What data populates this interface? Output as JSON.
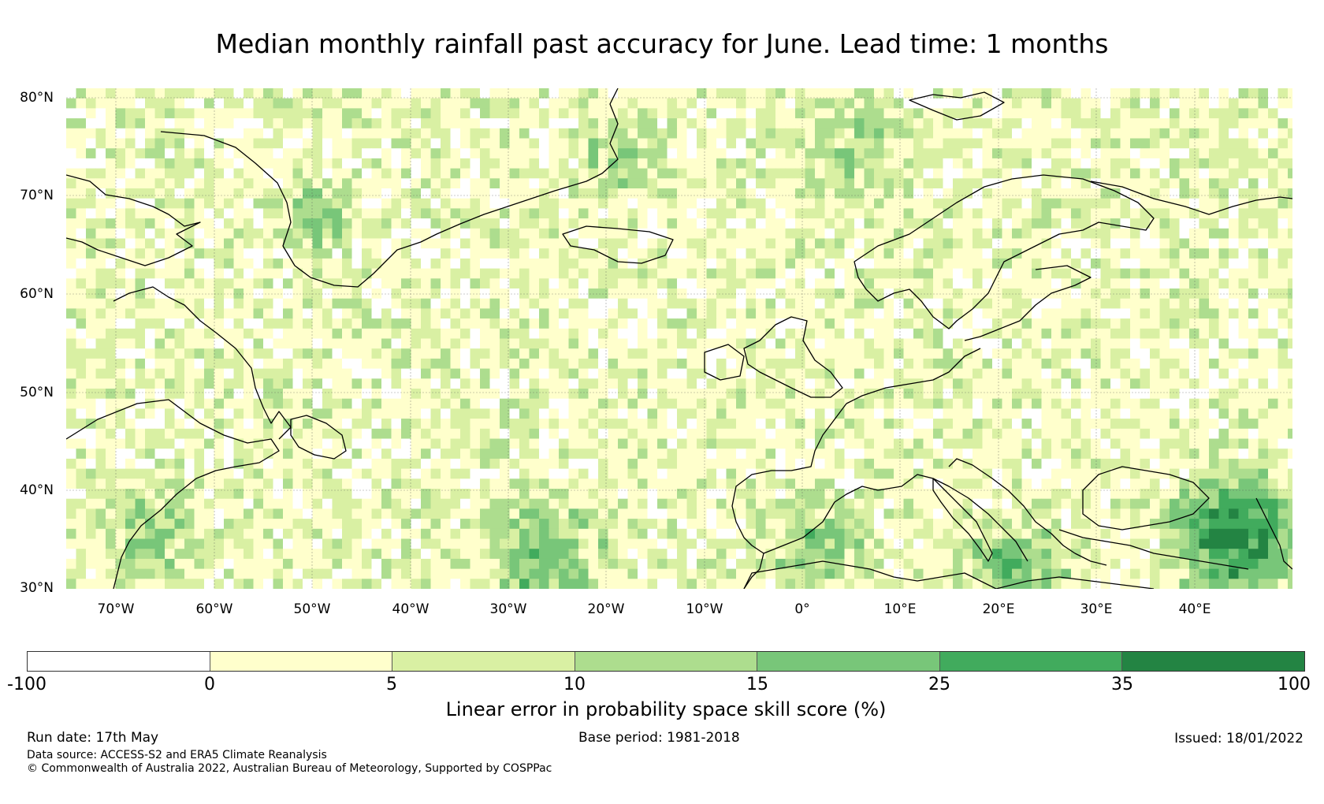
{
  "title": "Median monthly rainfall past accuracy for June. Lead time: 1 months",
  "map": {
    "region": "North Atlantic and Europe",
    "lon_range": [
      -75,
      50
    ],
    "lat_range": [
      30,
      81
    ],
    "lat_labels": [
      "80°N",
      "70°N",
      "60°N",
      "50°N",
      "40°N",
      "30°N"
    ],
    "lon_labels": [
      "70°W",
      "60°W",
      "50°W",
      "40°W",
      "30°W",
      "20°W",
      "10°W",
      "0°",
      "10°E",
      "20°E",
      "30°E",
      "40°E"
    ],
    "gridlines": true,
    "coastlines": true
  },
  "colorbar": {
    "label": "Linear error in probability space skill score (%)",
    "ticks": [
      "-100",
      "0",
      "5",
      "10",
      "15",
      "25",
      "35",
      "100"
    ],
    "colors": [
      "#ffffff",
      "#ffffcc",
      "#d9f0a3",
      "#addd8e",
      "#78c679",
      "#41ab5d",
      "#238443"
    ]
  },
  "footer": {
    "run_date": "Run date: 17th May",
    "base_period": "Base period: 1981-2018",
    "issued": "Issued: 18/01/2022",
    "data_source": "Data source: ACCESS-S2 and ERA5 Climate Reanalysis",
    "copyright": "© Commonwealth of Australia 2022, Australian Bureau of Meteorology, Supported by COSPPac"
  }
}
